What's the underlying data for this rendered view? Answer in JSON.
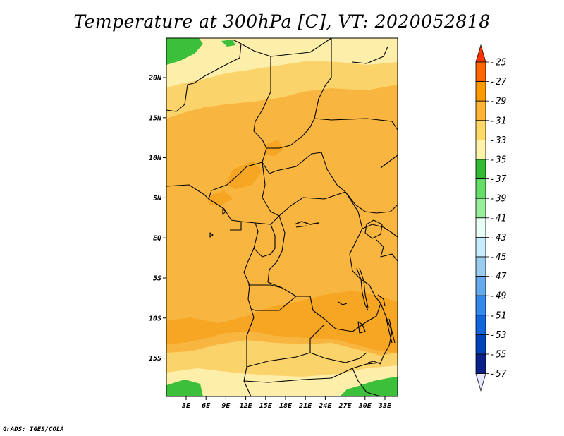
{
  "title": "Temperature at 300hPa [C], VT: 2020052818",
  "credit": "GrADS: IGES/COLA",
  "map": {
    "lat_labels": [
      "20N",
      "15N",
      "10N",
      "5N",
      "EQ",
      "5S",
      "10S",
      "15S"
    ],
    "lon_labels": [
      "3E",
      "6E",
      "9E",
      "12E",
      "15E",
      "18E",
      "21E",
      "24E",
      "27E",
      "30E",
      "33E"
    ]
  },
  "colorbar": {
    "levels": [
      "-25",
      "-27",
      "-29",
      "-31",
      "-33",
      "-35",
      "-37",
      "-39",
      "-41",
      "-43",
      "-45",
      "-47",
      "-49",
      "-51",
      "-53",
      "-55",
      "-57"
    ],
    "colors": [
      "#ff3300",
      "#ff6600",
      "#ff9900",
      "#ffb433",
      "#ffd966",
      "#fff2aa",
      "#33bb33",
      "#66dd66",
      "#99ee99",
      "#e8fff5",
      "#c8ecff",
      "#99ccee",
      "#66aaee",
      "#3388ee",
      "#1166dd",
      "#0044bb",
      "#0a1f88",
      "#e8e8ff"
    ]
  },
  "field_colors": {
    "c_27_29": "#f6a623",
    "c_29_31": "#f8b641",
    "c_31_33": "#fbd36b",
    "c_33_35": "#fdeeaa",
    "c_35_37": "#3cc03c"
  }
}
